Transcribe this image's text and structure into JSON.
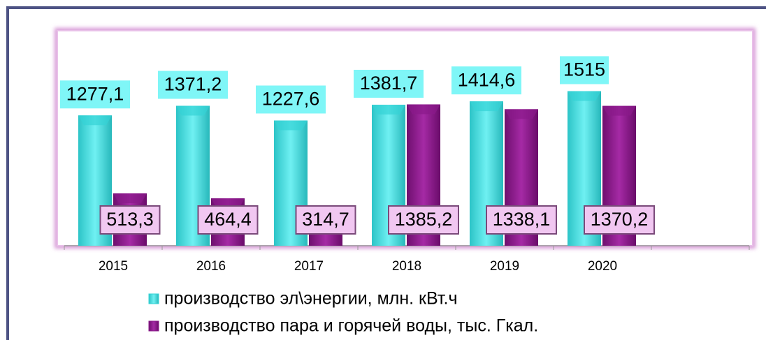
{
  "chart_data": {
    "type": "bar",
    "categories": [
      "2015",
      "2016",
      "2017",
      "2018",
      "2019",
      "2020",
      null
    ],
    "series": [
      {
        "name": "производство эл\\энергии, млн. кВт.ч",
        "color": "#35d3d6",
        "values": [
          1277.1,
          1371.2,
          1227.6,
          1381.7,
          1414.6,
          1515,
          null
        ],
        "value_labels": [
          "1277,1",
          "1371,2",
          "1227,6",
          "1381,7",
          "1414,6",
          "1515",
          null
        ]
      },
      {
        "name": "производство пара и горячей воды, тыс. Гкал.",
        "color": "#8a1a8a",
        "values": [
          513.3,
          464.4,
          314.7,
          1385.2,
          1338.1,
          1370.2,
          null
        ],
        "value_labels": [
          "513,3",
          "464,4",
          "314,7",
          "1385,2",
          "1338,1",
          "1370,2",
          null
        ]
      }
    ],
    "ylim": [
      0,
      1450
    ]
  }
}
